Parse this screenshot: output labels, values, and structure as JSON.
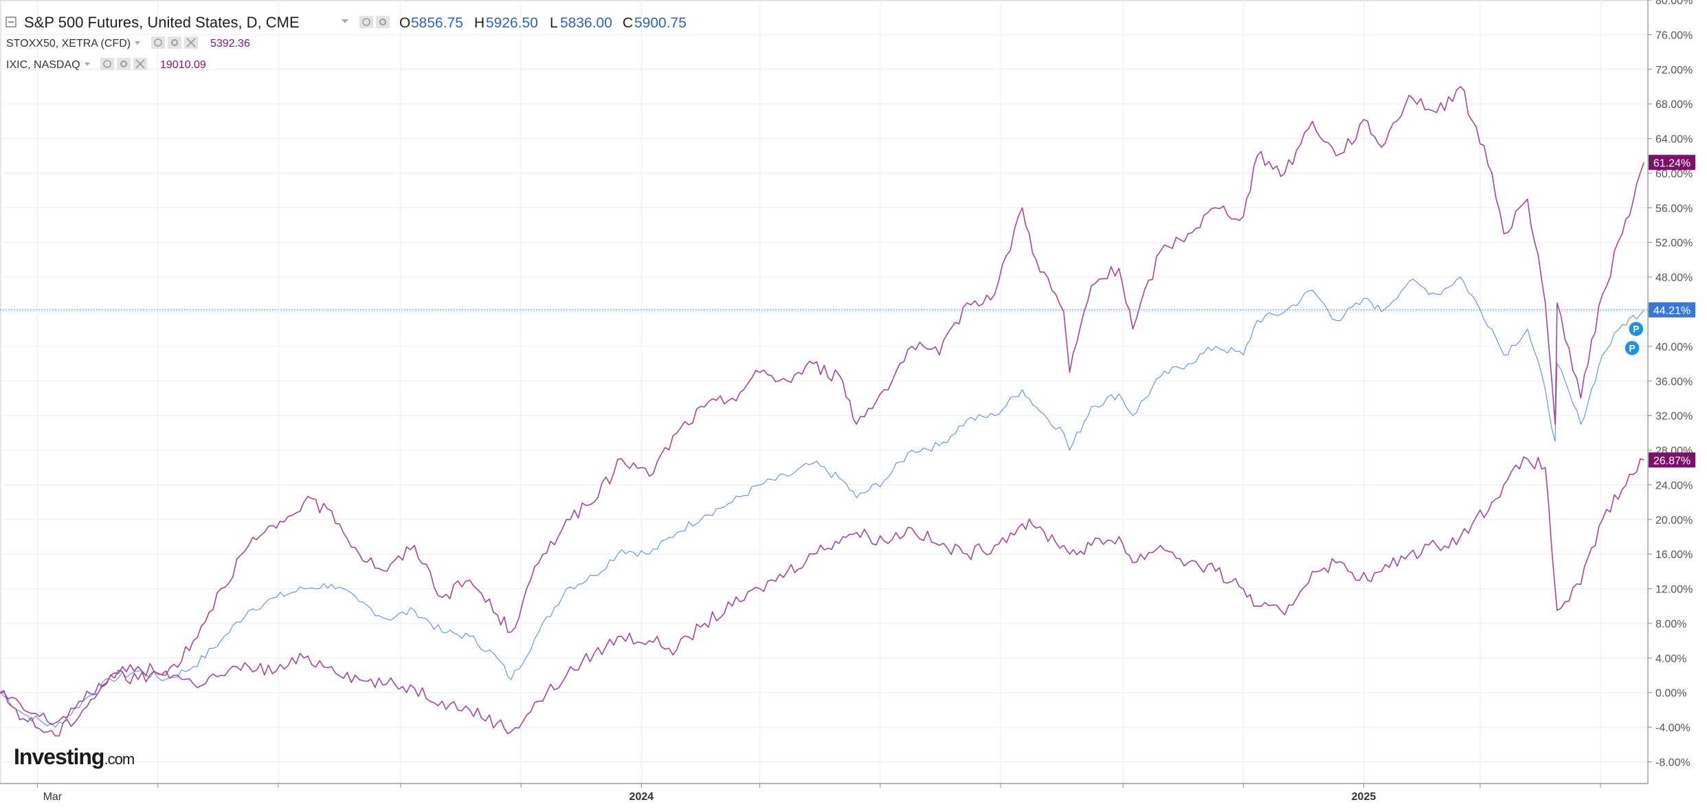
{
  "colors": {
    "main_series": "#4a86e8",
    "compare_series": "#a3479b",
    "price_label_bg": "#3778d6",
    "compare_label_bg": "#7e0f6b",
    "text_dark": "#1e1e1e",
    "text_blue": "#2a64c8",
    "text_purple": "#7a166f",
    "grid": "#eeeeee",
    "axis": "#8a8a8a"
  },
  "legend": {
    "main": {
      "title": "S&P 500 Futures, United States, D, CME",
      "o_label": "O",
      "o_value": "5856.75",
      "h_label": "H",
      "h_value": "5926.50",
      "l_label": "L",
      "l_value": "5836.00",
      "c_label": "C",
      "c_value": "5900.75"
    },
    "compare": [
      {
        "title": "STOXX50, XETRA (CFD)",
        "value": "5392.36"
      },
      {
        "title": "IXIC, NASDAQ",
        "value": "19010.09"
      }
    ]
  },
  "brand": {
    "name": "Investing",
    "suffix": ".com"
  },
  "markers": {
    "p_label": "P"
  },
  "chart_data": {
    "type": "line",
    "xlabel": "",
    "ylabel": "",
    "y_unit": "percent change",
    "ylim": [
      -10.5,
      80
    ],
    "y_ticks": [
      "80.00%",
      "76.00%",
      "72.00%",
      "68.00%",
      "64.00%",
      "60.00%",
      "56.00%",
      "52.00%",
      "48.00%",
      "44.00%",
      "40.00%",
      "36.00%",
      "32.00%",
      "28.00%",
      "24.00%",
      "20.00%",
      "16.00%",
      "12.00%",
      "8.00%",
      "4.00%",
      "0.00%",
      "-4.00%",
      "-8.00%"
    ],
    "y_tick_values": [
      80,
      76,
      72,
      68,
      64,
      60,
      56,
      52,
      48,
      44,
      40,
      36,
      32,
      28,
      24,
      20,
      16,
      12,
      8,
      4,
      0,
      -4,
      -8
    ],
    "x_ticks": [
      {
        "date": "2023-03-01",
        "label": "Mar"
      },
      {
        "date": "2023-05-01",
        "label": ""
      },
      {
        "date": "2023-07-01",
        "label": ""
      },
      {
        "date": "2023-09-01",
        "label": ""
      },
      {
        "date": "2023-11-01",
        "label": ""
      },
      {
        "date": "2024-01-01",
        "label": "2024"
      },
      {
        "date": "2024-03-01",
        "label": ""
      },
      {
        "date": "2024-05-01",
        "label": ""
      },
      {
        "date": "2024-07-01",
        "label": ""
      },
      {
        "date": "2024-09-01",
        "label": ""
      },
      {
        "date": "2024-11-01",
        "label": ""
      },
      {
        "date": "2025-01-01",
        "label": "2025"
      },
      {
        "date": "2025-03-01",
        "label": ""
      },
      {
        "date": "2025-05-01",
        "label": ""
      }
    ],
    "xlim": [
      "2023-02-10",
      "2025-05-25"
    ],
    "grid": true,
    "series": [
      {
        "name": "S&P 500 Futures, United States, D, CME",
        "color": "#4a86e8",
        "width": 1,
        "last_label": "44.21%",
        "points": [
          [
            "2023-02-10",
            0
          ],
          [
            "2023-02-22",
            -2.5
          ],
          [
            "2023-03-10",
            -4
          ],
          [
            "2023-03-24",
            -1
          ],
          [
            "2023-04-07",
            1.5
          ],
          [
            "2023-04-21",
            2.5
          ],
          [
            "2023-05-05",
            1.5
          ],
          [
            "2023-05-19",
            3
          ],
          [
            "2023-06-02",
            6
          ],
          [
            "2023-06-16",
            9.5
          ],
          [
            "2023-06-30",
            11
          ],
          [
            "2023-07-14",
            12
          ],
          [
            "2023-07-28",
            12.5
          ],
          [
            "2023-08-11",
            10.5
          ],
          [
            "2023-08-25",
            8.5
          ],
          [
            "2023-09-08",
            9.5
          ],
          [
            "2023-09-22",
            7
          ],
          [
            "2023-10-06",
            6.5
          ],
          [
            "2023-10-20",
            4
          ],
          [
            "2023-10-27",
            1.5
          ],
          [
            "2023-11-10",
            7
          ],
          [
            "2023-11-24",
            12
          ],
          [
            "2023-12-08",
            13.5
          ],
          [
            "2023-12-22",
            16.5
          ],
          [
            "2024-01-05",
            16
          ],
          [
            "2024-01-19",
            18.5
          ],
          [
            "2024-02-02",
            20.5
          ],
          [
            "2024-02-16",
            22
          ],
          [
            "2024-03-01",
            24
          ],
          [
            "2024-03-15",
            25
          ],
          [
            "2024-03-28",
            26.5
          ],
          [
            "2024-04-12",
            24.5
          ],
          [
            "2024-04-19",
            22.5
          ],
          [
            "2024-05-03",
            24.5
          ],
          [
            "2024-05-17",
            28
          ],
          [
            "2024-05-31",
            28.5
          ],
          [
            "2024-06-14",
            31.5
          ],
          [
            "2024-06-28",
            32
          ],
          [
            "2024-07-12",
            35
          ],
          [
            "2024-07-19",
            33
          ],
          [
            "2024-08-02",
            30
          ],
          [
            "2024-08-05",
            28
          ],
          [
            "2024-08-16",
            33
          ],
          [
            "2024-08-30",
            34.5
          ],
          [
            "2024-09-06",
            32
          ],
          [
            "2024-09-20",
            36.5
          ],
          [
            "2024-10-04",
            38
          ],
          [
            "2024-10-18",
            40
          ],
          [
            "2024-11-01",
            39
          ],
          [
            "2024-11-08",
            43
          ],
          [
            "2024-11-22",
            44
          ],
          [
            "2024-12-06",
            46.5
          ],
          [
            "2024-12-18",
            43
          ],
          [
            "2025-01-03",
            45.5
          ],
          [
            "2025-01-10",
            44
          ],
          [
            "2025-01-24",
            47.5
          ],
          [
            "2025-02-07",
            46
          ],
          [
            "2025-02-19",
            48
          ],
          [
            "2025-03-07",
            42
          ],
          [
            "2025-03-13",
            39
          ],
          [
            "2025-03-25",
            42
          ],
          [
            "2025-04-03",
            35
          ],
          [
            "2025-04-08",
            29
          ],
          [
            "2025-04-09",
            38
          ],
          [
            "2025-04-21",
            31
          ],
          [
            "2025-05-02",
            39
          ],
          [
            "2025-05-12",
            42.5
          ],
          [
            "2025-05-23",
            44.21
          ]
        ]
      },
      {
        "name": "STOXX50, XETRA (CFD)",
        "color": "#a3479b",
        "width": 1.6,
        "last_label": "26.87%",
        "points": [
          [
            "2023-02-10",
            0
          ],
          [
            "2023-02-22",
            -2
          ],
          [
            "2023-03-10",
            -3.5
          ],
          [
            "2023-03-24",
            -1
          ],
          [
            "2023-04-07",
            2
          ],
          [
            "2023-04-21",
            1.5
          ],
          [
            "2023-05-05",
            2.5
          ],
          [
            "2023-05-19",
            1
          ],
          [
            "2023-06-02",
            2
          ],
          [
            "2023-06-16",
            3
          ],
          [
            "2023-06-30",
            2.5
          ],
          [
            "2023-07-14",
            4
          ],
          [
            "2023-07-28",
            3
          ],
          [
            "2023-08-11",
            1.5
          ],
          [
            "2023-08-25",
            1
          ],
          [
            "2023-09-08",
            0.5
          ],
          [
            "2023-09-22",
            -1
          ],
          [
            "2023-10-06",
            -2
          ],
          [
            "2023-10-20",
            -3.5
          ],
          [
            "2023-10-27",
            -4.5
          ],
          [
            "2023-11-10",
            -1
          ],
          [
            "2023-11-24",
            2
          ],
          [
            "2023-12-08",
            4.5
          ],
          [
            "2023-12-22",
            6.5
          ],
          [
            "2024-01-05",
            6
          ],
          [
            "2024-01-19",
            5
          ],
          [
            "2024-02-02",
            8
          ],
          [
            "2024-02-16",
            10
          ],
          [
            "2024-03-01",
            12
          ],
          [
            "2024-03-15",
            14
          ],
          [
            "2024-03-28",
            16
          ],
          [
            "2024-04-12",
            18
          ],
          [
            "2024-04-19",
            18.5
          ],
          [
            "2024-05-03",
            17.5
          ],
          [
            "2024-05-17",
            19
          ],
          [
            "2024-05-31",
            17
          ],
          [
            "2024-06-14",
            16
          ],
          [
            "2024-06-28",
            17
          ],
          [
            "2024-07-12",
            19.5
          ],
          [
            "2024-07-19",
            19
          ],
          [
            "2024-08-02",
            17
          ],
          [
            "2024-08-05",
            16
          ],
          [
            "2024-08-16",
            17
          ],
          [
            "2024-08-30",
            18
          ],
          [
            "2024-09-06",
            15
          ],
          [
            "2024-09-20",
            17
          ],
          [
            "2024-10-04",
            15
          ],
          [
            "2024-10-18",
            14
          ],
          [
            "2024-11-01",
            12
          ],
          [
            "2024-11-08",
            10
          ],
          [
            "2024-11-22",
            9
          ],
          [
            "2024-12-06",
            14
          ],
          [
            "2024-12-18",
            15
          ],
          [
            "2025-01-03",
            13
          ],
          [
            "2025-01-10",
            14
          ],
          [
            "2025-01-24",
            16
          ],
          [
            "2025-02-07",
            17
          ],
          [
            "2025-02-19",
            18
          ],
          [
            "2025-03-07",
            22
          ],
          [
            "2025-03-13",
            24
          ],
          [
            "2025-03-25",
            27
          ],
          [
            "2025-04-03",
            26
          ],
          [
            "2025-04-08",
            12
          ],
          [
            "2025-04-09",
            9.5
          ],
          [
            "2025-04-21",
            12.5
          ],
          [
            "2025-05-02",
            20
          ],
          [
            "2025-05-12",
            23.5
          ],
          [
            "2025-05-23",
            26.87
          ]
        ]
      },
      {
        "name": "IXIC, NASDAQ",
        "color": "#a3479b",
        "width": 1.6,
        "last_label": "61.24%",
        "points": [
          [
            "2023-02-10",
            0
          ],
          [
            "2023-02-22",
            -3
          ],
          [
            "2023-03-10",
            -5
          ],
          [
            "2023-03-24",
            -2
          ],
          [
            "2023-04-07",
            2
          ],
          [
            "2023-04-21",
            3
          ],
          [
            "2023-05-05",
            2
          ],
          [
            "2023-05-19",
            6
          ],
          [
            "2023-06-02",
            12
          ],
          [
            "2023-06-16",
            17
          ],
          [
            "2023-06-30",
            19
          ],
          [
            "2023-07-14",
            22
          ],
          [
            "2023-07-28",
            21
          ],
          [
            "2023-08-11",
            16
          ],
          [
            "2023-08-25",
            14
          ],
          [
            "2023-09-08",
            17
          ],
          [
            "2023-09-22",
            11
          ],
          [
            "2023-10-06",
            13
          ],
          [
            "2023-10-20",
            9
          ],
          [
            "2023-10-27",
            7
          ],
          [
            "2023-11-10",
            15
          ],
          [
            "2023-11-24",
            20
          ],
          [
            "2023-12-08",
            22
          ],
          [
            "2023-12-22",
            27
          ],
          [
            "2024-01-05",
            25
          ],
          [
            "2024-01-19",
            30
          ],
          [
            "2024-02-02",
            33
          ],
          [
            "2024-02-16",
            34
          ],
          [
            "2024-03-01",
            37
          ],
          [
            "2024-03-15",
            36
          ],
          [
            "2024-03-28",
            38
          ],
          [
            "2024-04-12",
            36
          ],
          [
            "2024-04-19",
            31
          ],
          [
            "2024-05-03",
            35
          ],
          [
            "2024-05-17",
            40
          ],
          [
            "2024-05-31",
            39
          ],
          [
            "2024-06-14",
            45
          ],
          [
            "2024-06-28",
            46
          ],
          [
            "2024-07-12",
            56
          ],
          [
            "2024-07-19",
            50
          ],
          [
            "2024-08-02",
            44
          ],
          [
            "2024-08-05",
            37
          ],
          [
            "2024-08-16",
            47
          ],
          [
            "2024-08-30",
            49
          ],
          [
            "2024-09-06",
            42
          ],
          [
            "2024-09-20",
            51
          ],
          [
            "2024-10-04",
            53
          ],
          [
            "2024-10-18",
            56
          ],
          [
            "2024-11-01",
            55
          ],
          [
            "2024-11-08",
            62
          ],
          [
            "2024-11-22",
            60
          ],
          [
            "2024-12-06",
            66
          ],
          [
            "2024-12-18",
            62
          ],
          [
            "2025-01-03",
            66
          ],
          [
            "2025-01-10",
            63
          ],
          [
            "2025-01-24",
            69
          ],
          [
            "2025-02-07",
            67
          ],
          [
            "2025-02-19",
            70
          ],
          [
            "2025-03-07",
            60
          ],
          [
            "2025-03-13",
            53
          ],
          [
            "2025-03-25",
            57
          ],
          [
            "2025-04-03",
            45
          ],
          [
            "2025-04-08",
            31
          ],
          [
            "2025-04-09",
            45
          ],
          [
            "2025-04-21",
            34
          ],
          [
            "2025-05-02",
            46
          ],
          [
            "2025-05-12",
            53
          ],
          [
            "2025-05-23",
            61.24
          ]
        ]
      }
    ]
  }
}
